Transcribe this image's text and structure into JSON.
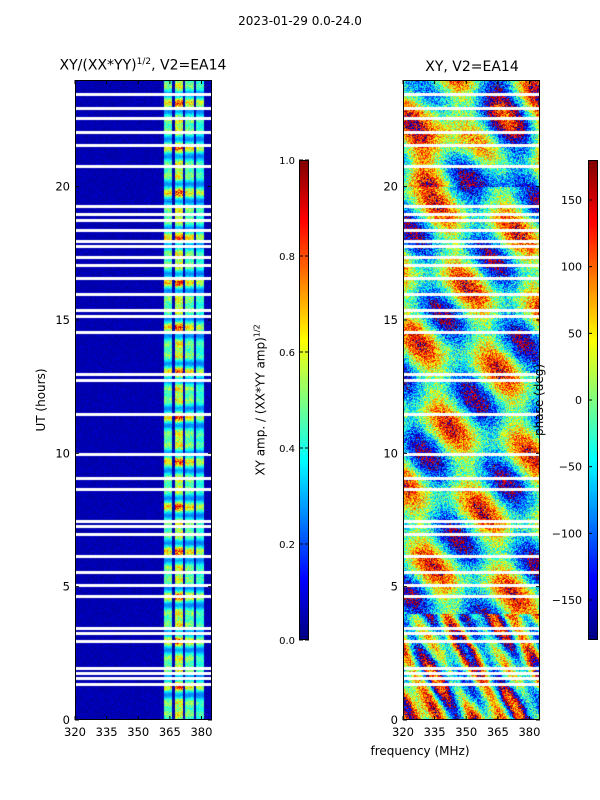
{
  "suptitle": "2023-01-29 0.0-24.0",
  "chart_data": [
    {
      "type": "heatmap",
      "title": "XY/(XX*YY)^1/2, V2=EA14",
      "title_main": "XY/(XX*YY)",
      "title_exp": "1/2",
      "title_tail": ", V2=EA14",
      "xlabel": "",
      "ylabel": "UT (hours)",
      "xlim": [
        320,
        385
      ],
      "ylim": [
        0,
        24
      ],
      "xticks": [
        "320",
        "335",
        "350",
        "365",
        "380"
      ],
      "yticks": [
        "0",
        "5",
        "10",
        "15",
        "20"
      ],
      "colorbar": {
        "label": "XY amp. / (XX*YY amp)^1/2",
        "label_main": "XY amp. / (XX*YY amp)",
        "label_exp": "1/2",
        "range": [
          0.0,
          1.0
        ],
        "ticks": [
          "0.0",
          "0.2",
          "0.4",
          "0.6",
          "0.8",
          "1.0"
        ],
        "colormap": "jet"
      },
      "description_value": "near 0 below ~362 MHz; bright channels 362-380 MHz",
      "flagged_ut": [
        1.4,
        1.6,
        1.8,
        2.0,
        3.0,
        3.3,
        3.5,
        4.7,
        5.1,
        5.6,
        6.2,
        7.0,
        7.3,
        7.5,
        8.7,
        9.1,
        10.0,
        11.5,
        12.8,
        13.0,
        14.6,
        15.2,
        15.4,
        16.0,
        16.6,
        17.1,
        17.4,
        17.8,
        18.0,
        18.4,
        18.8,
        19.0,
        19.3,
        20.8,
        21.6,
        22.1,
        22.6,
        23.0,
        23.5
      ]
    },
    {
      "type": "heatmap",
      "title": "XY, V2=EA14",
      "xlabel": "frequency (MHz)",
      "ylabel": "",
      "xlim": [
        320,
        385
      ],
      "ylim": [
        0,
        24
      ],
      "xticks": [
        "320",
        "335",
        "350",
        "365",
        "380"
      ],
      "yticks": [
        "0",
        "5",
        "10",
        "15",
        "20"
      ],
      "colorbar": {
        "label": "phase (deg)",
        "range": [
          -180,
          180
        ],
        "ticks": [
          "−150",
          "−100",
          "−50",
          "0",
          "50",
          "100",
          "150"
        ],
        "tick_values": [
          -150,
          -100,
          -50,
          0,
          50,
          100,
          150
        ],
        "colormap": "jet"
      },
      "description_value": "phase varies across full -180..180 range",
      "flagged_ut": [
        1.4,
        1.6,
        1.8,
        2.0,
        3.0,
        3.3,
        3.5,
        4.7,
        5.1,
        5.6,
        6.2,
        7.0,
        7.3,
        7.5,
        8.7,
        9.1,
        10.0,
        11.5,
        12.8,
        13.0,
        14.6,
        15.2,
        15.4,
        16.0,
        16.6,
        17.1,
        17.4,
        17.8,
        18.0,
        18.4,
        18.8,
        19.0,
        19.3,
        20.8,
        21.6,
        22.1,
        22.6,
        23.0,
        23.5
      ]
    }
  ]
}
